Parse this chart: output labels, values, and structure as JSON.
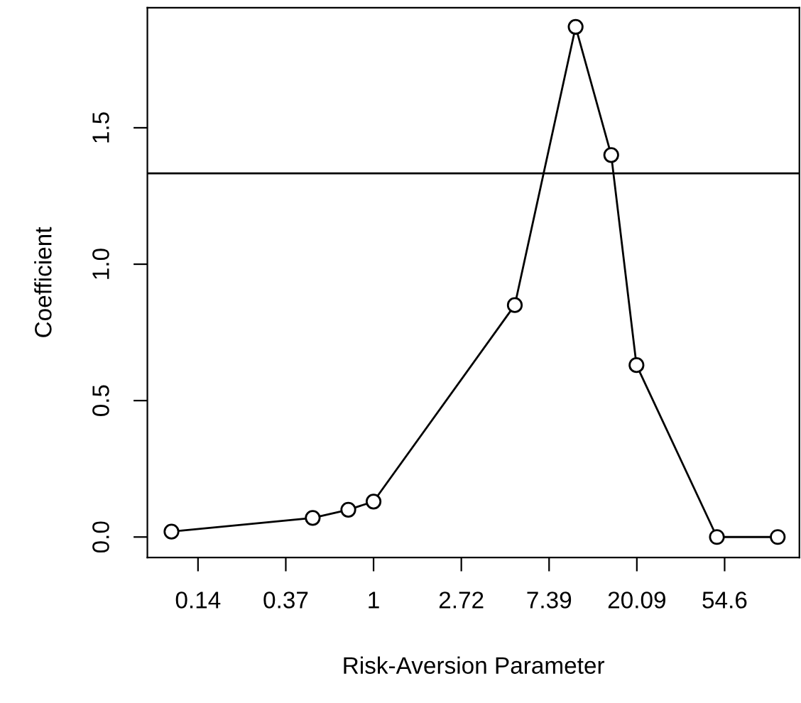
{
  "chart_data": {
    "type": "line",
    "xlabel": "Risk-Aversion Parameter",
    "ylabel": "Coefficient",
    "x": [
      0.1,
      0.5,
      0.75,
      1,
      5,
      10,
      15,
      20,
      50,
      100
    ],
    "values": [
      0.02,
      0.07,
      0.1,
      0.13,
      0.85,
      1.87,
      1.4,
      0.63,
      0.0,
      0.0
    ],
    "color": "#000000",
    "marker": "circle",
    "line_style": "solid",
    "log": "x",
    "grid": false,
    "legend": false,
    "xlim": [
      0.076,
      128
    ],
    "ylim": [
      -0.075,
      1.94
    ],
    "xticks": [
      {
        "value": 0.1353,
        "label": "0.14"
      },
      {
        "value": 0.3679,
        "label": "0.37"
      },
      1,
      {
        "value": 2.7183,
        "label": "2.72"
      },
      {
        "value": 7.389,
        "label": "7.39"
      },
      {
        "value": 20.086,
        "label": "20.09"
      },
      {
        "value": 54.598,
        "label": "54.6"
      }
    ],
    "yticks": [
      {
        "value": 0,
        "label": "0.0"
      },
      {
        "value": 0.5,
        "label": "0.5"
      },
      {
        "value": 1,
        "label": "1.0"
      },
      {
        "value": 1.5,
        "label": "1.5"
      }
    ],
    "ref_lines": [
      {
        "axis": "y",
        "value": 1.333,
        "color": "#000000"
      }
    ]
  }
}
